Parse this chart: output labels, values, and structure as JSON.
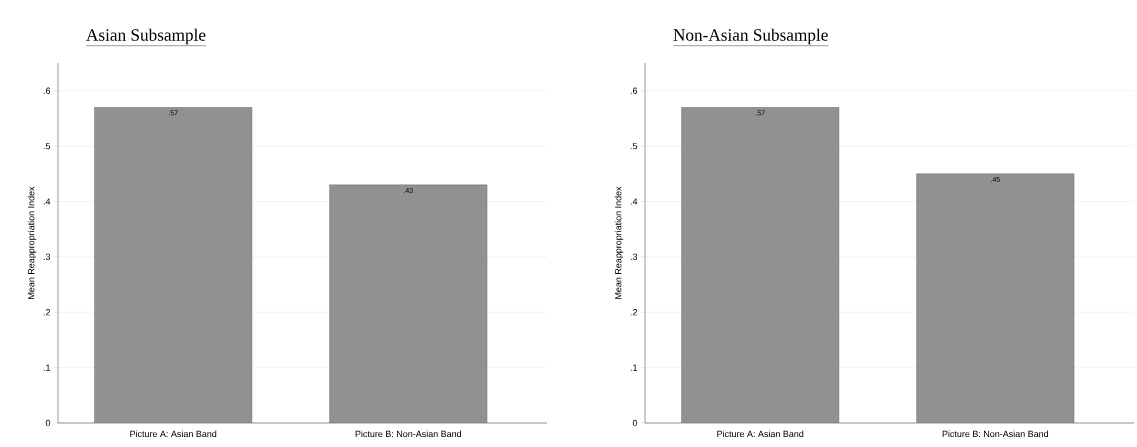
{
  "chart_data": [
    {
      "type": "bar",
      "title": "Asian Subsample",
      "ylabel": "Mean Reappropriation Index",
      "categories": [
        "Picture A: Asian Band",
        "Picture B: Non-Asian Band"
      ],
      "values": [
        0.57,
        0.43
      ],
      "value_labels": [
        ".57",
        ".43"
      ],
      "color": "#919191",
      "ylim": [
        0,
        0.65
      ],
      "yticks": [
        0,
        {
          "value": 0.1,
          "label": ".1"
        },
        {
          "value": 0.2,
          "label": ".2"
        },
        {
          "value": 0.3,
          "label": ".3"
        },
        {
          "value": 0.4,
          "label": ".4"
        },
        {
          "value": 0.5,
          "label": ".5"
        },
        {
          "value": 0.6,
          "label": ".6"
        }
      ],
      "grid": "y"
    },
    {
      "type": "bar",
      "title": "Non-Asian Subsample",
      "ylabel": "Mean Reappropriation Index",
      "categories": [
        "Picture A: Asian Band",
        "Picture B: Non-Asian Band"
      ],
      "values": [
        0.57,
        0.45
      ],
      "value_labels": [
        ".57",
        ".45"
      ],
      "color": "#919191",
      "ylim": [
        0,
        0.65
      ],
      "yticks": [
        0,
        {
          "value": 0.1,
          "label": ".1"
        },
        {
          "value": 0.2,
          "label": ".2"
        },
        {
          "value": 0.3,
          "label": ".3"
        },
        {
          "value": 0.4,
          "label": ".4"
        },
        {
          "value": 0.5,
          "label": ".5"
        },
        {
          "value": 0.6,
          "label": ".6"
        }
      ],
      "grid": "y"
    }
  ]
}
